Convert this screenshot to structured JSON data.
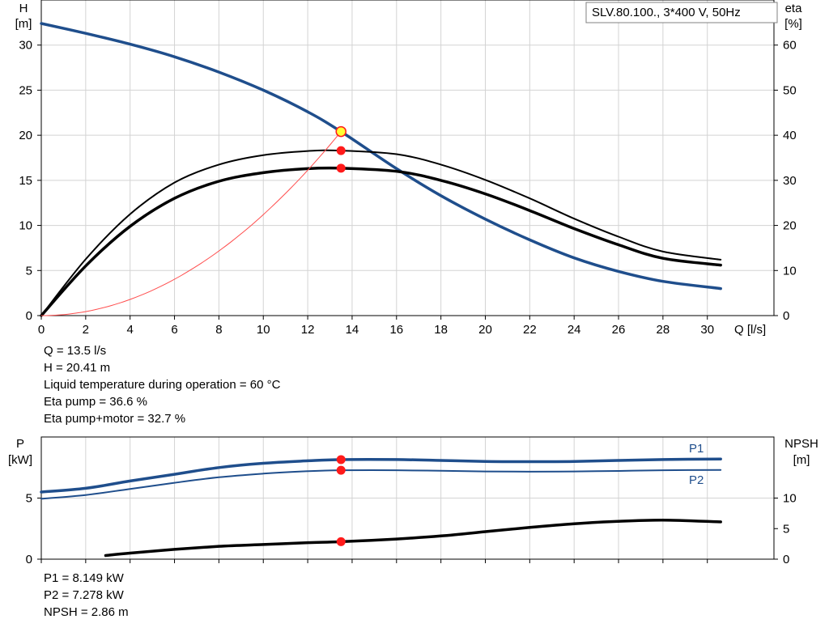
{
  "title_box": "SLV.80.100., 3*400 V, 50Hz",
  "top_info": [
    "Q = 13.5 l/s",
    "H = 20.41 m",
    "Liquid temperature during operation = 60 °C",
    "Eta pump = 36.6 %",
    "Eta pump+motor = 32.7 %"
  ],
  "bottom_info": [
    "P1 = 8.149 kW",
    "P2 = 7.278 kW",
    "NPSH = 2.86 m"
  ],
  "colors": {
    "head": "#1f4e8c",
    "eta": "#000000",
    "system": "#ff4d4d",
    "marker": "#ff1a1a",
    "marker_duty": "#ffff33",
    "grid": "#d3d3d3"
  },
  "chart_data": [
    {
      "type": "line",
      "x_label": "Q [l/s]",
      "y_left_label": [
        "H",
        "[m]"
      ],
      "y_right_label": [
        "eta",
        "[%]"
      ],
      "x_ticks": [
        0,
        2,
        4,
        6,
        8,
        10,
        12,
        14,
        16,
        18,
        20,
        22,
        24,
        26,
        28,
        30
      ],
      "y_left_ticks": [
        0,
        5,
        10,
        15,
        20,
        25,
        30
      ],
      "y_right_ticks": [
        0,
        10,
        20,
        30,
        40,
        50,
        60
      ],
      "xlim": [
        0,
        33
      ],
      "y_left_lim": [
        0,
        35
      ],
      "y_right_lim": [
        0,
        70
      ],
      "grid": true,
      "series": [
        {
          "key": "H",
          "axis": "left",
          "style": "thick-blue",
          "x": [
            0,
            2,
            4,
            6,
            8,
            10,
            12,
            13.5,
            16,
            18,
            20,
            22,
            24,
            26,
            28,
            30.6
          ],
          "y": [
            32.4,
            31.3,
            30.1,
            28.7,
            27.0,
            25.0,
            22.6,
            20.41,
            16.3,
            13.3,
            10.7,
            8.4,
            6.4,
            4.9,
            3.8,
            3.0
          ]
        },
        {
          "key": "eta_pump",
          "axis": "right",
          "style": "thin-black",
          "x": [
            0,
            2,
            4,
            6,
            8,
            10,
            12,
            13.5,
            16,
            18,
            20,
            22,
            24,
            26,
            28,
            30.6
          ],
          "y": [
            0,
            12.5,
            22.5,
            29.5,
            33.5,
            35.6,
            36.5,
            36.6,
            35.8,
            33.5,
            30.1,
            26.0,
            21.5,
            17.5,
            14.2,
            12.4
          ]
        },
        {
          "key": "eta_pump_motor",
          "axis": "right",
          "style": "thick-black",
          "x": [
            0,
            2,
            4,
            6,
            8,
            10,
            12,
            13.5,
            16,
            18,
            20,
            22,
            24,
            26,
            28,
            30.6
          ],
          "y": [
            0,
            11.0,
            19.8,
            26.0,
            29.8,
            31.7,
            32.6,
            32.7,
            32.0,
            30.0,
            27.0,
            23.3,
            19.3,
            15.7,
            12.7,
            11.2
          ]
        },
        {
          "key": "system",
          "axis": "left",
          "style": "thin-red",
          "x": [
            0,
            13.5
          ],
          "y": [
            0,
            20.41
          ],
          "curve": "quadratic"
        }
      ],
      "points": [
        {
          "x": 13.5,
          "y": 20.41,
          "axis": "left",
          "duty": true
        },
        {
          "x": 13.5,
          "y": 36.6,
          "axis": "right"
        },
        {
          "x": 13.5,
          "y": 32.7,
          "axis": "right"
        }
      ]
    },
    {
      "type": "line",
      "y_left_label": [
        "P",
        "[kW]"
      ],
      "y_right_label": [
        "NPSH",
        "[m]"
      ],
      "x_ticks": [
        0,
        2,
        4,
        6,
        8,
        10,
        12,
        14,
        16,
        18,
        20,
        22,
        24,
        26,
        28,
        30
      ],
      "y_left_ticks": [
        0,
        5
      ],
      "y_right_ticks": [
        0,
        5,
        10
      ],
      "xlim": [
        0,
        33
      ],
      "y_left_lim": [
        0,
        10
      ],
      "y_right_lim": [
        0,
        20
      ],
      "grid": true,
      "series": [
        {
          "name": "P1",
          "key": "P1",
          "axis": "left",
          "style": "thick-blue",
          "x": [
            0,
            2,
            4,
            6,
            8,
            10,
            12,
            13.5,
            16,
            18,
            20,
            22,
            24,
            26,
            28,
            30.6
          ],
          "y": [
            5.5,
            5.8,
            6.4,
            6.95,
            7.5,
            7.85,
            8.05,
            8.149,
            8.15,
            8.08,
            8.0,
            7.98,
            8.0,
            8.08,
            8.15,
            8.2
          ]
        },
        {
          "name": "P2",
          "key": "P2",
          "axis": "left",
          "style": "thin-blue",
          "x": [
            0,
            2,
            4,
            6,
            8,
            10,
            12,
            13.5,
            16,
            18,
            20,
            22,
            24,
            26,
            28,
            30.6
          ],
          "y": [
            4.95,
            5.25,
            5.75,
            6.25,
            6.7,
            7.0,
            7.2,
            7.278,
            7.28,
            7.23,
            7.18,
            7.16,
            7.18,
            7.22,
            7.28,
            7.3
          ]
        },
        {
          "key": "NPSH",
          "axis": "right",
          "style": "thick-black",
          "x": [
            2.9,
            4,
            6,
            8,
            10,
            12,
            13.5,
            16,
            18,
            20,
            22,
            24,
            26,
            28,
            30.6
          ],
          "y": [
            0.6,
            1.0,
            1.6,
            2.1,
            2.4,
            2.7,
            2.86,
            3.3,
            3.8,
            4.5,
            5.2,
            5.8,
            6.2,
            6.4,
            6.1
          ]
        }
      ],
      "points": [
        {
          "x": 13.5,
          "y": 8.149,
          "axis": "left"
        },
        {
          "x": 13.5,
          "y": 7.278,
          "axis": "left"
        },
        {
          "x": 13.5,
          "y": 2.86,
          "axis": "right"
        }
      ]
    }
  ]
}
